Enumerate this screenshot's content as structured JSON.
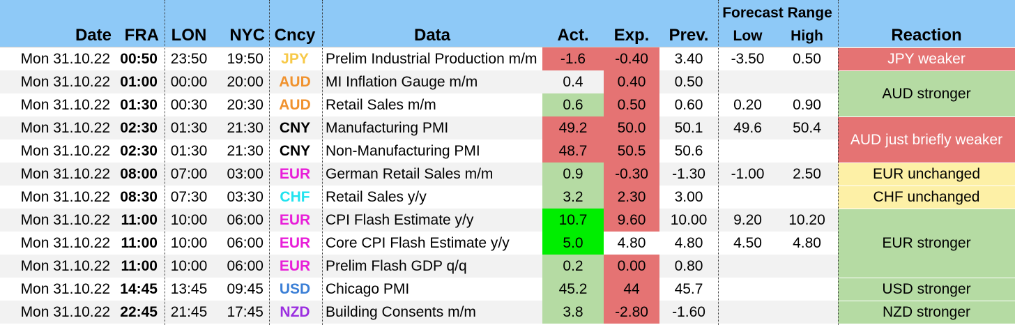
{
  "header": {
    "date": "Date",
    "fra": "FRA",
    "lon": "LON",
    "nyc": "NYC",
    "ccy": "Cncy",
    "data": "Data",
    "act": "Act.",
    "exp": "Exp.",
    "prev": "Prev.",
    "forecast_range": "Forecast Range",
    "low": "Low",
    "high": "High",
    "reaction": "Reaction"
  },
  "colors": {
    "header_bg": "#8ec9f7",
    "red": "#e57373",
    "green": "#b5dba3",
    "bright_green": "#00ee00",
    "yellow": "#fdf0a6",
    "alt_row": "#f2f2f2",
    "ccy": {
      "JPY": "#f7c948",
      "AUD": "#f0922e",
      "CNY": "#000000",
      "EUR": "#e81ed8",
      "CHF": "#22e3ef",
      "USD": "#3b7fd6",
      "NZD": "#9b2fe0"
    }
  },
  "rows": [
    {
      "date": "Mon 31.10.22",
      "fra": "00:50",
      "lon": "23:50",
      "nyc": "19:50",
      "ccy": "JPY",
      "data": "Prelim Industrial Production m/m",
      "act": "-1.6",
      "exp": "-0.40",
      "prev": "3.40",
      "low": "-3.50",
      "high": "0.50",
      "act_color": "red",
      "exp_color": "red"
    },
    {
      "date": "Mon 31.10.22",
      "fra": "01:00",
      "lon": "00:00",
      "nyc": "20:00",
      "ccy": "AUD",
      "data": "MI Inflation Gauge m/m",
      "act": "0.4",
      "exp": "0.40",
      "prev": "0.50",
      "low": "",
      "high": "",
      "act_color": "none",
      "exp_color": "red"
    },
    {
      "date": "Mon 31.10.22",
      "fra": "01:30",
      "lon": "00:30",
      "nyc": "20:30",
      "ccy": "AUD",
      "data": "Retail Sales m/m",
      "act": "0.6",
      "exp": "0.50",
      "prev": "0.60",
      "low": "0.20",
      "high": "0.90",
      "act_color": "green",
      "exp_color": "red"
    },
    {
      "date": "Mon 31.10.22",
      "fra": "02:30",
      "lon": "01:30",
      "nyc": "21:30",
      "ccy": "CNY",
      "data": "Manufacturing PMI",
      "act": "49.2",
      "exp": "50.0",
      "prev": "50.1",
      "low": "49.6",
      "high": "50.4",
      "act_color": "red",
      "exp_color": "red"
    },
    {
      "date": "Mon 31.10.22",
      "fra": "02:30",
      "lon": "01:30",
      "nyc": "21:30",
      "ccy": "CNY",
      "data": "Non-Manufacturing PMI",
      "act": "48.7",
      "exp": "50.5",
      "prev": "50.6",
      "low": "",
      "high": "",
      "act_color": "red",
      "exp_color": "red"
    },
    {
      "date": "Mon 31.10.22",
      "fra": "08:00",
      "lon": "07:00",
      "nyc": "03:00",
      "ccy": "EUR",
      "data": "German Retail Sales m/m",
      "act": "0.9",
      "exp": "-0.30",
      "prev": "-1.30",
      "low": "-1.00",
      "high": "2.50",
      "act_color": "green",
      "exp_color": "red"
    },
    {
      "date": "Mon 31.10.22",
      "fra": "08:30",
      "lon": "07:30",
      "nyc": "03:30",
      "ccy": "CHF",
      "data": "Retail Sales y/y",
      "act": "3.2",
      "exp": "2.30",
      "prev": "3.00",
      "low": "",
      "high": "",
      "act_color": "green",
      "exp_color": "red"
    },
    {
      "date": "Mon 31.10.22",
      "fra": "11:00",
      "lon": "10:00",
      "nyc": "06:00",
      "ccy": "EUR",
      "data": "CPI Flash Estimate y/y",
      "act": "10.7",
      "exp": "9.60",
      "prev": "10.00",
      "low": "9.20",
      "high": "10.20",
      "act_color": "bright_green",
      "exp_color": "red"
    },
    {
      "date": "Mon 31.10.22",
      "fra": "11:00",
      "lon": "10:00",
      "nyc": "06:00",
      "ccy": "EUR",
      "data": "Core CPI Flash Estimate y/y",
      "act": "5.0",
      "exp": "4.80",
      "prev": "4.80",
      "low": "4.50",
      "high": "4.80",
      "act_color": "bright_green",
      "exp_color": "none"
    },
    {
      "date": "Mon 31.10.22",
      "fra": "11:00",
      "lon": "10:00",
      "nyc": "06:00",
      "ccy": "EUR",
      "data": "Prelim Flash GDP q/q",
      "act": "0.2",
      "exp": "0.00",
      "prev": "0.80",
      "low": "",
      "high": "",
      "act_color": "green",
      "exp_color": "red"
    },
    {
      "date": "Mon 31.10.22",
      "fra": "14:45",
      "lon": "13:45",
      "nyc": "09:45",
      "ccy": "USD",
      "data": "Chicago PMI",
      "act": "45.2",
      "exp": "44",
      "prev": "45.7",
      "low": "",
      "high": "",
      "act_color": "green",
      "exp_color": "red"
    },
    {
      "date": "Mon 31.10.22",
      "fra": "22:45",
      "lon": "21:45",
      "nyc": "17:45",
      "ccy": "NZD",
      "data": "Building Consents m/m",
      "act": "3.8",
      "exp": "-2.80",
      "prev": "-1.60",
      "low": "",
      "high": "",
      "act_color": "green",
      "exp_color": "red"
    }
  ],
  "reactions": [
    {
      "text": "JPY weaker",
      "color": "red",
      "text_color": "#ffffff",
      "row_start": 0,
      "row_span": 1
    },
    {
      "text": "AUD stronger",
      "color": "green",
      "text_color": "#000000",
      "row_start": 1,
      "row_span": 2
    },
    {
      "text": "AUD just briefly weaker",
      "color": "red",
      "text_color": "#ffffff",
      "row_start": 3,
      "row_span": 2
    },
    {
      "text": "EUR unchanged",
      "color": "yellow",
      "text_color": "#000000",
      "row_start": 5,
      "row_span": 1
    },
    {
      "text": "CHF unchanged",
      "color": "yellow",
      "text_color": "#000000",
      "row_start": 6,
      "row_span": 1
    },
    {
      "text": "EUR stronger",
      "color": "green",
      "text_color": "#000000",
      "row_start": 7,
      "row_span": 3
    },
    {
      "text": "USD stronger",
      "color": "green",
      "text_color": "#000000",
      "row_start": 10,
      "row_span": 1
    },
    {
      "text": "NZD stronger",
      "color": "green",
      "text_color": "#000000",
      "row_start": 11,
      "row_span": 1
    }
  ]
}
